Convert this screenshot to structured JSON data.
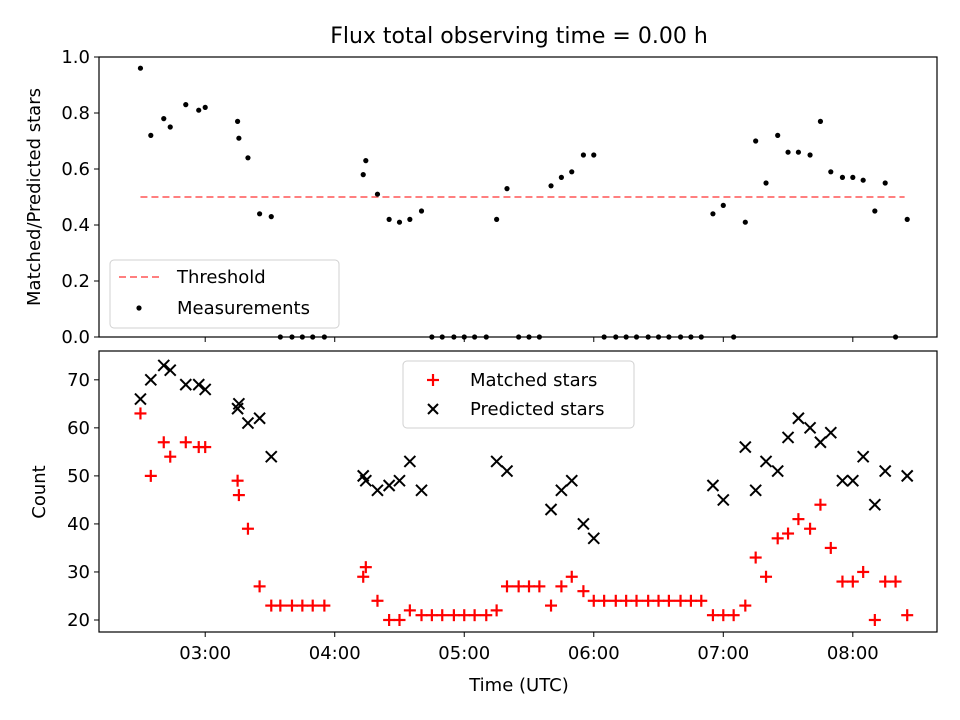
{
  "chart_data": [
    {
      "type": "scatter",
      "title": "Flux total observing time = 0.00 h",
      "xlabel": "",
      "ylabel": "Matched/Predicted stars",
      "xlim": [
        2.18,
        8.65
      ],
      "ylim": [
        0,
        1
      ],
      "yticks": [
        "0.0",
        "0.2",
        "0.4",
        "0.6",
        "0.8",
        "1.0"
      ],
      "grid": false,
      "legend_position": "lower-left",
      "threshold": {
        "name": "Threshold",
        "value": 0.5,
        "x_range": [
          2.5,
          8.4
        ],
        "color": "#ff7f7f"
      },
      "measurements": {
        "name": "Measurements",
        "color": "#000000",
        "x": [
          2.5,
          2.58,
          2.68,
          2.73,
          2.85,
          2.95,
          3.0,
          3.25,
          3.26,
          3.33,
          3.42,
          3.51,
          3.58,
          3.67,
          3.75,
          3.83,
          3.92,
          4.22,
          4.24,
          4.33,
          4.42,
          4.5,
          4.58,
          4.67,
          4.75,
          4.83,
          4.92,
          5.0,
          5.08,
          5.17,
          5.25,
          5.33,
          5.42,
          5.5,
          5.58,
          5.67,
          5.75,
          5.83,
          5.92,
          6.0,
          6.08,
          6.17,
          6.25,
          6.33,
          6.42,
          6.5,
          6.58,
          6.67,
          6.75,
          6.83,
          6.92,
          7.0,
          7.08,
          7.17,
          7.25,
          7.33,
          7.42,
          7.5,
          7.58,
          7.67,
          7.75,
          7.83,
          7.92,
          8.0,
          8.08,
          8.17,
          8.25,
          8.33,
          8.42
        ],
        "y": [
          0.96,
          0.72,
          0.78,
          0.75,
          0.83,
          0.81,
          0.82,
          0.77,
          0.71,
          0.64,
          0.44,
          0.43,
          0.0,
          0.0,
          0.0,
          0.0,
          0.0,
          0.58,
          0.63,
          0.51,
          0.42,
          0.41,
          0.42,
          0.45,
          0.0,
          0.0,
          0.0,
          0.0,
          0.0,
          0.0,
          0.42,
          0.53,
          0.0,
          0.0,
          0.0,
          0.54,
          0.57,
          0.59,
          0.65,
          0.65,
          0.0,
          0.0,
          0.0,
          0.0,
          0.0,
          0.0,
          0.0,
          0.0,
          0.0,
          0.0,
          0.44,
          0.47,
          0.0,
          0.41,
          0.7,
          0.55,
          0.72,
          0.66,
          0.66,
          0.65,
          0.77,
          0.59,
          0.57,
          0.57,
          0.56,
          0.45,
          0.55,
          0.0,
          0.42
        ]
      }
    },
    {
      "type": "scatter",
      "title": "",
      "xlabel": "Time (UTC)",
      "ylabel": "Count",
      "xlim": [
        2.18,
        8.65
      ],
      "ylim": [
        17.5,
        76
      ],
      "yticks": [
        "20",
        "30",
        "40",
        "50",
        "60",
        "70"
      ],
      "xticks": [
        "03:00",
        "04:00",
        "05:00",
        "06:00",
        "07:00",
        "08:00"
      ],
      "grid": false,
      "legend_position": "top-center",
      "series": [
        {
          "name": "Matched stars",
          "marker": "plus",
          "color": "#ff0000",
          "x": [
            2.5,
            2.58,
            2.68,
            2.73,
            2.85,
            2.95,
            3.0,
            3.25,
            3.26,
            3.33,
            3.42,
            3.51,
            3.58,
            3.67,
            3.75,
            3.83,
            3.92,
            4.22,
            4.24,
            4.33,
            4.42,
            4.5,
            4.58,
            4.67,
            4.75,
            4.83,
            4.92,
            5.0,
            5.08,
            5.17,
            5.25,
            5.33,
            5.42,
            5.5,
            5.58,
            5.67,
            5.75,
            5.83,
            5.92,
            6.0,
            6.08,
            6.17,
            6.25,
            6.33,
            6.42,
            6.5,
            6.58,
            6.67,
            6.75,
            6.83,
            6.92,
            7.0,
            7.08,
            7.17,
            7.25,
            7.33,
            7.42,
            7.5,
            7.58,
            7.67,
            7.75,
            7.83,
            7.92,
            8.0,
            8.08,
            8.17,
            8.25,
            8.33,
            8.42
          ],
          "y": [
            63,
            50,
            57,
            54,
            57,
            56,
            56,
            49,
            46,
            39,
            27,
            23,
            23,
            23,
            23,
            23,
            23,
            29,
            31,
            24,
            20,
            20,
            22,
            21,
            21,
            21,
            21,
            21,
            21,
            21,
            22,
            27,
            27,
            27,
            27,
            23,
            27,
            29,
            26,
            24,
            24,
            24,
            24,
            24,
            24,
            24,
            24,
            24,
            24,
            24,
            21,
            21,
            21,
            23,
            33,
            29,
            37,
            38,
            41,
            39,
            44,
            35,
            28,
            28,
            30,
            20,
            28,
            28,
            21
          ]
        },
        {
          "name": "Predicted stars",
          "marker": "x",
          "color": "#000000",
          "x": [
            2.5,
            2.58,
            2.68,
            2.73,
            2.85,
            2.95,
            3.0,
            3.25,
            3.26,
            3.33,
            3.42,
            3.51,
            4.22,
            4.24,
            4.33,
            4.42,
            4.5,
            4.58,
            4.67,
            5.25,
            5.33,
            5.67,
            5.75,
            5.83,
            5.92,
            6.0,
            6.92,
            7.0,
            7.17,
            7.25,
            7.33,
            7.42,
            7.5,
            7.58,
            7.67,
            7.75,
            7.83,
            7.92,
            8.0,
            8.08,
            8.17,
            8.25,
            8.42
          ],
          "y": [
            66,
            70,
            73,
            72,
            69,
            69,
            68,
            64,
            65,
            61,
            62,
            54,
            50,
            49,
            47,
            48,
            49,
            53,
            47,
            53,
            51,
            43,
            47,
            49,
            40,
            37,
            48,
            45,
            56,
            47,
            53,
            51,
            58,
            62,
            60,
            57,
            59,
            49,
            49,
            54,
            44,
            51,
            50
          ]
        }
      ]
    }
  ]
}
